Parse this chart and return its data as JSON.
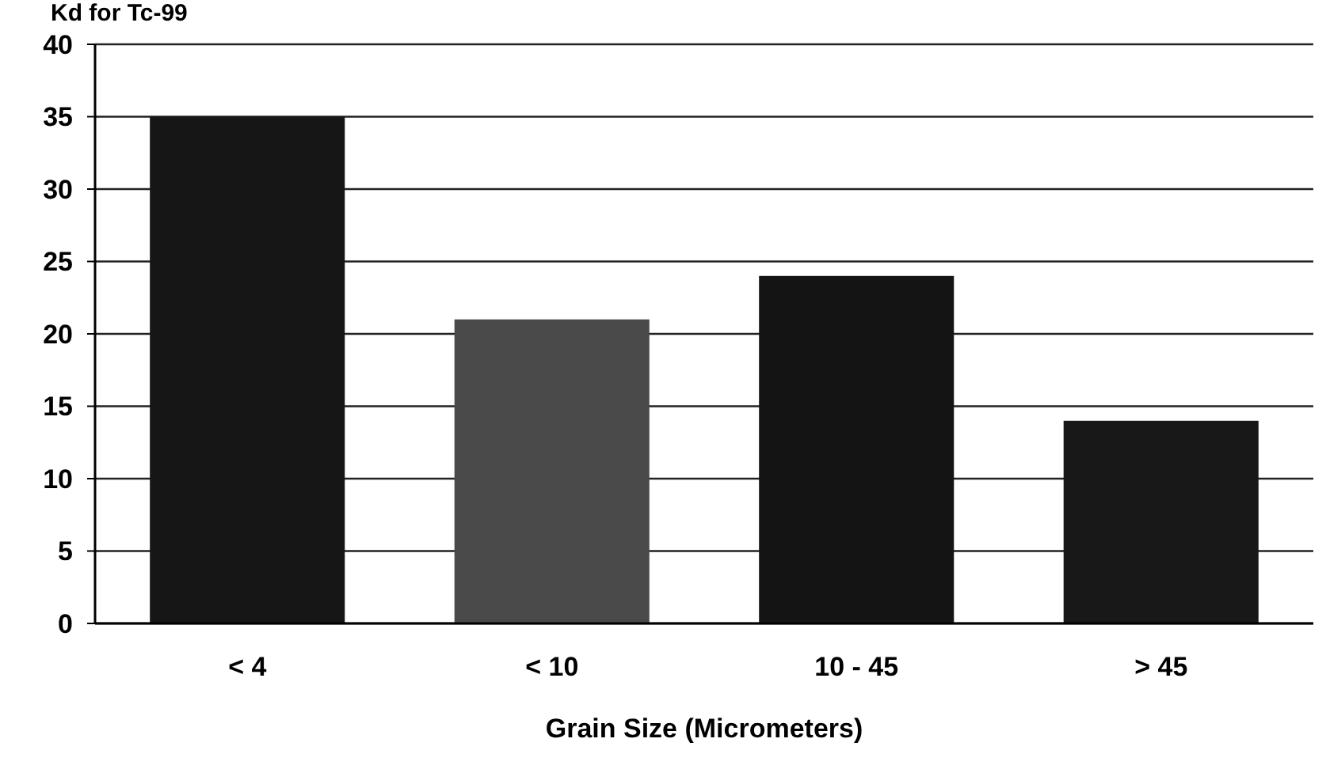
{
  "chart_data": {
    "type": "bar",
    "title": "Kd for Tc-99",
    "xlabel": "Grain Size (Micrometers)",
    "categories": [
      "< 4",
      "< 10",
      "10 - 45",
      "> 45"
    ],
    "values": [
      35,
      21,
      24,
      14
    ],
    "colors": [
      "#161616",
      "#4a4a4a",
      "#141414",
      "#181818"
    ],
    "ylim": [
      0,
      40
    ],
    "yticks": [
      0,
      5,
      10,
      15,
      20,
      25,
      30,
      35,
      40
    ],
    "grid": "y"
  }
}
